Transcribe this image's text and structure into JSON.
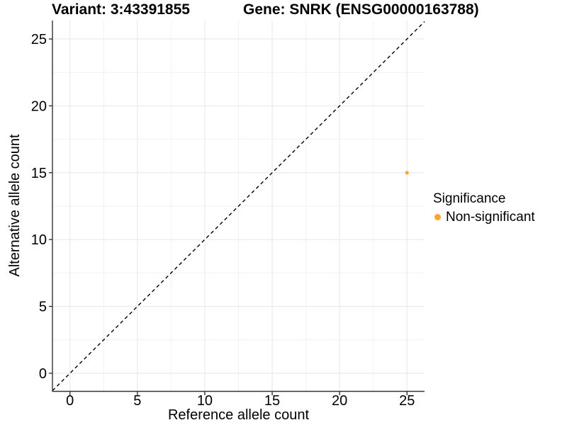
{
  "chart_data": {
    "type": "scatter",
    "titles": [
      "Variant: 3:43391855",
      "Gene: SNRK (ENSG00000163788)"
    ],
    "xlabel": "Reference allele count",
    "ylabel": "Alternative allele count",
    "xlim": [
      -1.3,
      26.3
    ],
    "ylim": [
      -1.38,
      26.38
    ],
    "xticks": [
      0,
      5,
      10,
      15,
      20,
      25
    ],
    "yticks": [
      0,
      5,
      10,
      15,
      20,
      25
    ],
    "xminor": [
      2.5,
      7.5,
      12.5,
      17.5,
      22.5
    ],
    "yminor": [
      2.5,
      7.5,
      12.5,
      17.5,
      22.5
    ],
    "grid": {
      "major": true,
      "minor": true
    },
    "identity_line": {
      "style": "dashed",
      "color": "#000000",
      "from": [
        -1.3,
        -1.3
      ],
      "to": [
        26.3,
        26.3
      ]
    },
    "series": [
      {
        "name": "Non-significant",
        "color": "#FCA42B",
        "point_radius": 2.6,
        "points": [
          {
            "x": 25,
            "y": 15
          }
        ]
      }
    ],
    "legend": {
      "position": "right",
      "title": "Significance",
      "entries": [
        {
          "label": "Non-significant",
          "color": "#FCA42B"
        }
      ]
    },
    "colors": {
      "axis": "#333333",
      "grid_major": "#E7E7E7",
      "grid_minor": "#F2F2F2",
      "text": "#000000",
      "background": "#FFFFFF"
    }
  }
}
